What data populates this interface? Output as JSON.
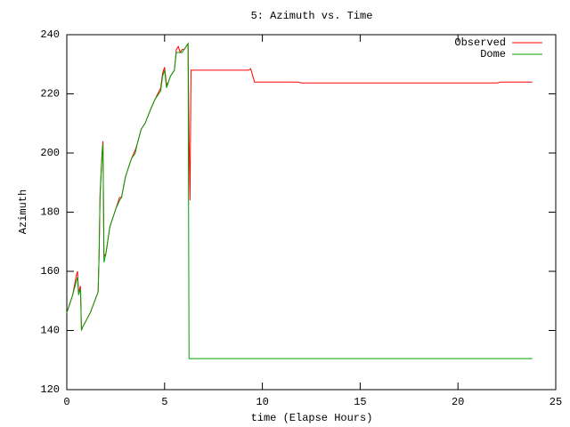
{
  "chart_data": {
    "type": "line",
    "title": "5: Azimuth vs. Time",
    "x_label": "time (Elapse Hours)",
    "y_label": "Azimuth",
    "xlim": [
      0,
      25
    ],
    "xticks": [
      0,
      5,
      10,
      15,
      20,
      25
    ],
    "ylim": [
      120,
      240
    ],
    "yticks": [
      120,
      140,
      160,
      180,
      200,
      220,
      240
    ],
    "legend": "top-right",
    "series": [
      {
        "name": "Observed",
        "color": "#ff0000",
        "x": [
          0,
          0.3,
          0.5,
          0.55,
          0.6,
          0.7,
          0.75,
          0.8,
          1.2,
          1.6,
          1.65,
          1.7,
          1.8,
          1.85,
          1.9,
          2.0,
          2.2,
          2.5,
          2.7,
          2.8,
          3.0,
          3.3,
          3.5,
          3.6,
          3.8,
          4.0,
          4.3,
          4.5,
          4.8,
          4.9,
          5.0,
          5.1,
          5.2,
          5.3,
          5.5,
          5.6,
          5.7,
          5.8,
          5.9,
          6.0,
          6.2,
          6.25,
          6.3,
          6.35,
          9.3,
          9.4,
          9.6,
          10.0,
          11.8,
          12.0,
          22.0,
          22.2,
          23.6,
          23.8
        ],
        "values": [
          146,
          152,
          159,
          160,
          153,
          155,
          140,
          141,
          146,
          153,
          165,
          186,
          200,
          204,
          165,
          166,
          175,
          181,
          185,
          185,
          192,
          198,
          201,
          203,
          208,
          210,
          215,
          218,
          222,
          227,
          229,
          223,
          224,
          226,
          228,
          235,
          236,
          234,
          235,
          235,
          237,
          205,
          184,
          228,
          228,
          228.5,
          224,
          224,
          224,
          223.7,
          223.7,
          224,
          224,
          224
        ]
      },
      {
        "name": "Dome",
        "color": "#00a000",
        "x": [
          0,
          0.3,
          0.5,
          0.55,
          0.6,
          0.7,
          0.75,
          0.8,
          1.2,
          1.6,
          1.65,
          1.7,
          1.8,
          1.85,
          1.9,
          2.0,
          2.2,
          2.5,
          2.7,
          2.8,
          3.0,
          3.3,
          3.5,
          3.6,
          3.8,
          4.0,
          4.3,
          4.5,
          4.8,
          4.9,
          5.0,
          5.1,
          5.2,
          5.3,
          5.5,
          5.6,
          5.7,
          5.8,
          5.9,
          6.0,
          6.2,
          6.25,
          23.8
        ],
        "values": [
          146,
          152,
          157,
          158,
          152,
          154,
          140,
          141,
          146,
          153,
          165,
          185,
          199,
          203,
          163,
          166,
          175,
          181,
          184,
          185,
          192,
          198,
          200,
          203,
          208,
          210,
          215,
          218,
          221,
          226,
          228,
          222,
          224,
          226,
          228,
          234,
          234,
          234,
          234,
          235,
          237,
          130.5,
          130.5
        ]
      }
    ]
  }
}
